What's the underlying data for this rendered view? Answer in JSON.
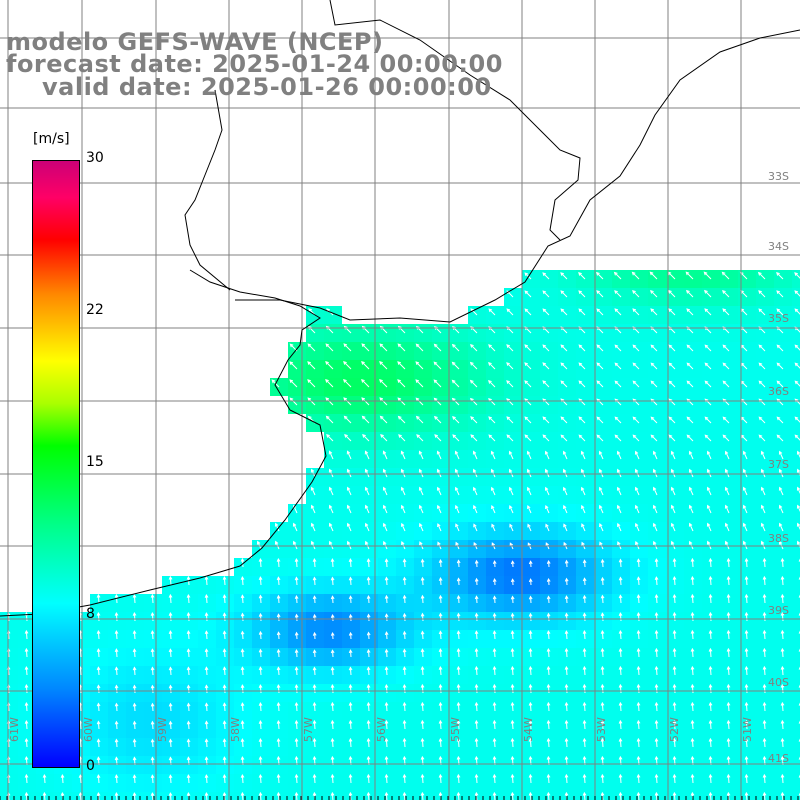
{
  "header": {
    "line1": "modelo GEFS-WAVE (NCEP)",
    "line2": "forecast date: 2025-01-24 00:00:00",
    "line3": "valid date: 2025-01-26 00:00:00"
  },
  "colorbar": {
    "unit": "[m/s]",
    "ticks": [
      "30",
      "22",
      "15",
      "8",
      "0"
    ],
    "min": 0,
    "max": 30,
    "colors": [
      "#0000ff",
      "#0088ff",
      "#00ffff",
      "#00ff88",
      "#00ff00",
      "#ffff00",
      "#ff0000",
      "#cc0077"
    ]
  },
  "map": {
    "lon_labels": [
      "61W",
      "60W",
      "59W",
      "58W",
      "57W",
      "56W",
      "55W",
      "54W",
      "53W",
      "52W",
      "51W"
    ],
    "lat_labels": [
      "33S",
      "34S",
      "35S",
      "36S",
      "37S",
      "38S",
      "39S",
      "40S",
      "41S"
    ],
    "land_color": "#ffffff",
    "grid_color": "#808080",
    "coast_color": "#000000",
    "arrow_color": "#ffffff"
  }
}
